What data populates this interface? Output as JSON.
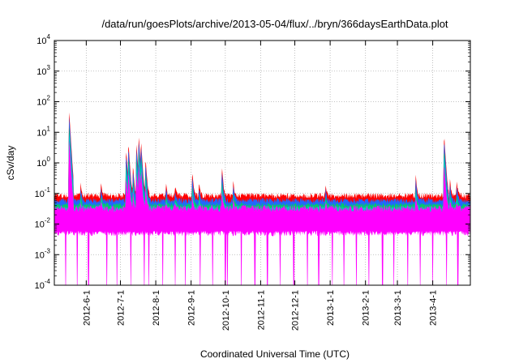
{
  "chart_data": {
    "type": "area",
    "title": "/data/run/goesPlots/archive/2013-05-04/flux/../bryn/366daysEarthData.plot",
    "xlabel": "Coordinated Universal Time (UTC)",
    "ylabel": "cSv/day",
    "yscale": "log",
    "ylim": [
      0.0001,
      10000
    ],
    "y_ticks": [
      {
        "base": "10",
        "exp": "-4",
        "value": 0.0001
      },
      {
        "base": "10",
        "exp": "-3",
        "value": 0.001
      },
      {
        "base": "10",
        "exp": "-2",
        "value": 0.01
      },
      {
        "base": "10",
        "exp": "-1",
        "value": 0.1
      },
      {
        "base": "10",
        "exp": "0",
        "value": 1
      },
      {
        "base": "10",
        "exp": "1",
        "value": 10
      },
      {
        "base": "10",
        "exp": "2",
        "value": 100
      },
      {
        "base": "10",
        "exp": "3",
        "value": 1000
      },
      {
        "base": "10",
        "exp": "4",
        "value": 10000
      }
    ],
    "xlim": [
      "2012-05-04",
      "2013-05-04"
    ],
    "x_ticks": [
      "2012-6-1",
      "2012-7-1",
      "2012-8-1",
      "2012-9-1",
      "2012-10-1",
      "2012-11-1",
      "2012-12-1",
      "2013-1-1",
      "2013-2-1",
      "2013-3-1",
      "2013-4-1"
    ],
    "grid": true,
    "series_colors": [
      "#ff0000",
      "#2266ff",
      "#00cc66",
      "#00cccc",
      "#ff00ff"
    ],
    "baseline": {
      "magenta_low": 0.005,
      "magenta_high": 0.035,
      "blue": 0.06,
      "red": 0.08
    },
    "spikes": [
      {
        "date": "2012-05-17",
        "peak": 50
      },
      {
        "date": "2012-05-27",
        "peak": 0.15
      },
      {
        "date": "2012-06-14",
        "peak": 0.15
      },
      {
        "date": "2012-07-06",
        "peak": 3
      },
      {
        "date": "2012-07-08",
        "peak": 5
      },
      {
        "date": "2012-07-12",
        "peak": 0.8
      },
      {
        "date": "2012-07-15",
        "peak": 5
      },
      {
        "date": "2012-07-17",
        "peak": 9
      },
      {
        "date": "2012-07-19",
        "peak": 6
      },
      {
        "date": "2012-07-23",
        "peak": 1.5
      },
      {
        "date": "2012-08-10",
        "peak": 0.15
      },
      {
        "date": "2012-08-18",
        "peak": 0.12
      },
      {
        "date": "2012-09-02",
        "peak": 0.5
      },
      {
        "date": "2012-09-08",
        "peak": 0.15
      },
      {
        "date": "2012-09-28",
        "peak": 0.8
      },
      {
        "date": "2012-10-08",
        "peak": 0.2
      },
      {
        "date": "2012-12-28",
        "peak": 0.12
      },
      {
        "date": "2013-03-17",
        "peak": 0.4
      },
      {
        "date": "2013-04-11",
        "peak": 9
      },
      {
        "date": "2013-04-16",
        "peak": 0.25
      },
      {
        "date": "2013-04-22",
        "peak": 0.2
      }
    ],
    "dropout_dates": [
      "2012-05-14",
      "2012-05-24",
      "2012-06-03",
      "2012-06-19",
      "2012-06-28",
      "2012-07-10",
      "2012-07-22",
      "2012-07-26",
      "2012-08-07",
      "2012-08-18",
      "2012-08-27",
      "2012-09-09",
      "2012-09-20",
      "2012-10-01",
      "2012-10-03",
      "2012-10-15",
      "2012-10-27",
      "2012-11-07",
      "2012-11-18",
      "2012-11-30",
      "2012-12-12",
      "2012-12-22",
      "2013-01-03",
      "2013-01-13",
      "2013-01-24",
      "2013-02-04",
      "2013-02-16",
      "2013-02-26",
      "2013-03-10",
      "2013-03-21",
      "2013-04-01",
      "2013-04-13",
      "2013-04-23"
    ]
  }
}
